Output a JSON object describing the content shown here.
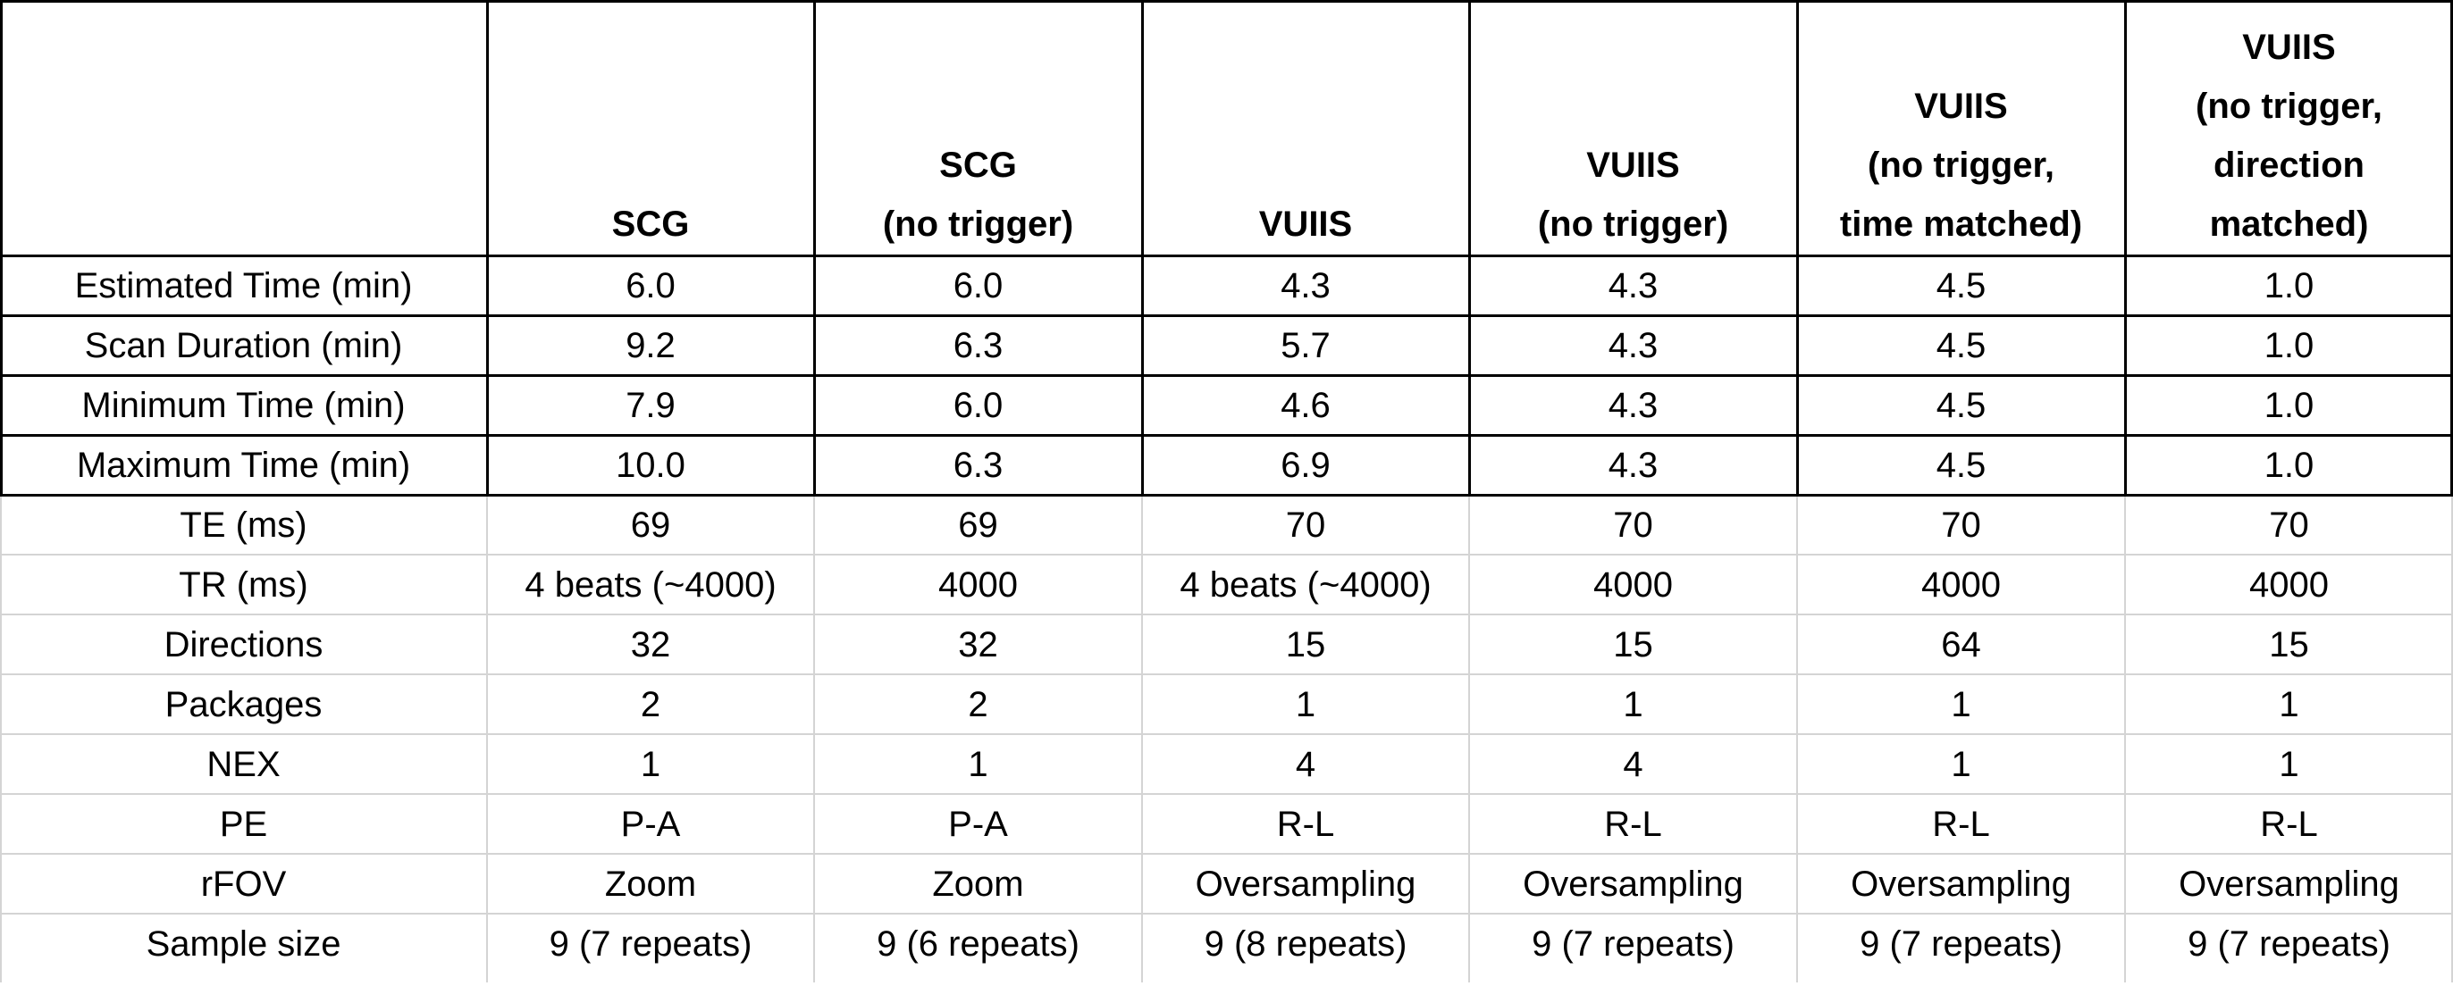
{
  "table": {
    "corner": "",
    "columns": [
      {
        "key": "scg",
        "lines": [
          "SCG"
        ]
      },
      {
        "key": "scg_no_trigger",
        "lines": [
          "SCG",
          "(no trigger)"
        ]
      },
      {
        "key": "vuiis",
        "lines": [
          "VUIIS"
        ]
      },
      {
        "key": "vuiis_no_trigger",
        "lines": [
          "VUIIS",
          "(no trigger)"
        ]
      },
      {
        "key": "vuiis_no_trigger_time_matched",
        "lines": [
          "VUIIS",
          "(no trigger,",
          "time matched)"
        ]
      },
      {
        "key": "vuiis_no_trigger_direction_matched",
        "lines": [
          "VUIIS",
          "(no trigger,",
          "direction",
          "matched)"
        ]
      }
    ],
    "rows": [
      {
        "key": "estimated_time",
        "label": "Estimated Time (min)",
        "values": [
          "6.0",
          "6.0",
          "4.3",
          "4.3",
          "4.5",
          "1.0"
        ]
      },
      {
        "key": "scan_duration",
        "label": "Scan Duration (min)",
        "values": [
          "9.2",
          "6.3",
          "5.7",
          "4.3",
          "4.5",
          "1.0"
        ]
      },
      {
        "key": "minimum_time",
        "label": "Minimum Time (min)",
        "values": [
          "7.9",
          "6.0",
          "4.6",
          "4.3",
          "4.5",
          "1.0"
        ]
      },
      {
        "key": "maximum_time",
        "label": "Maximum Time (min)",
        "values": [
          "10.0",
          "6.3",
          "6.9",
          "4.3",
          "4.5",
          "1.0"
        ]
      },
      {
        "key": "te",
        "label": "TE (ms)",
        "values": [
          "69",
          "69",
          "70",
          "70",
          "70",
          "70"
        ]
      },
      {
        "key": "tr",
        "label": "TR (ms)",
        "values": [
          "4 beats (~4000)",
          "4000",
          "4 beats (~4000)",
          "4000",
          "4000",
          "4000"
        ]
      },
      {
        "key": "directions",
        "label": "Directions",
        "values": [
          "32",
          "32",
          "15",
          "15",
          "64",
          "15"
        ]
      },
      {
        "key": "packages",
        "label": "Packages",
        "values": [
          "2",
          "2",
          "1",
          "1",
          "1",
          "1"
        ]
      },
      {
        "key": "nex",
        "label": "NEX",
        "values": [
          "1",
          "1",
          "4",
          "4",
          "1",
          "1"
        ]
      },
      {
        "key": "pe",
        "label": "PE",
        "values": [
          "P-A",
          "P-A",
          "R-L",
          "R-L",
          "R-L",
          "R-L"
        ]
      },
      {
        "key": "rfov",
        "label": "rFOV",
        "values": [
          "Zoom",
          "Zoom",
          "Oversampling",
          "Oversampling",
          "Oversampling",
          "Oversampling"
        ]
      },
      {
        "key": "sample_size",
        "label": "Sample size",
        "values": [
          "9 (7 repeats)",
          "9 (6 repeats)",
          "9 (8 repeats)",
          "9 (7 repeats)",
          "9 (7 repeats)",
          "9 (7 repeats)"
        ]
      }
    ]
  },
  "style": {
    "heavy_border_color": "#000000",
    "light_border_color": "#d4d4d4",
    "background_color": "#ffffff",
    "text_color": "#000000"
  }
}
